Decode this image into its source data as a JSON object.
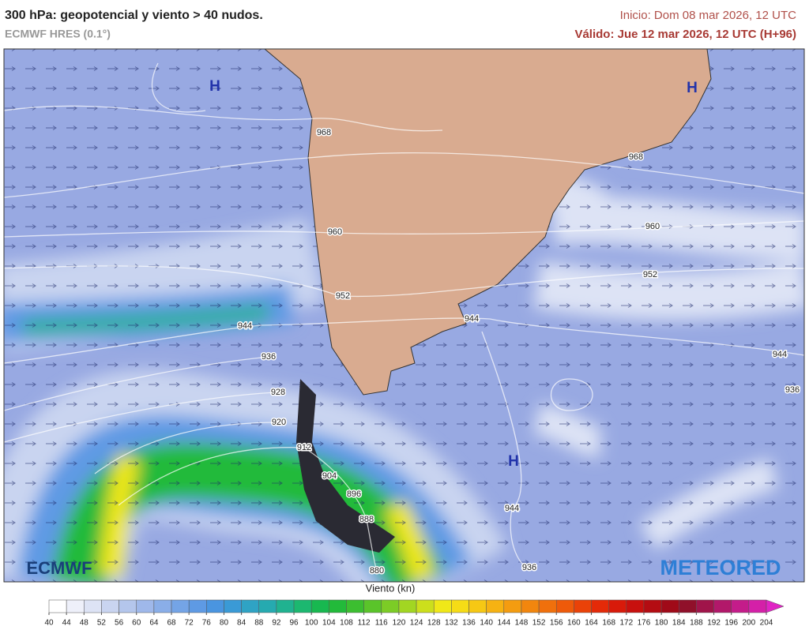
{
  "header": {
    "title": "300 hPa: geopotencial y viento > 40 nudos.",
    "subtitle": "ECMWF HRES (0.1°)",
    "init": "Inicio: Dom 08 mar 2026, 12 UTC",
    "valid": "Válido: Jue 12 mar 2026, 12 UTC (H+96)"
  },
  "map": {
    "highs": [
      "H",
      "H",
      "H"
    ],
    "contour_labels": [
      968,
      968,
      960,
      960,
      952,
      952,
      944,
      944,
      944,
      944,
      936,
      936,
      936,
      928,
      920,
      912,
      904,
      896,
      888,
      880
    ]
  },
  "logos": {
    "left": "ECMWF",
    "right": "METEORED"
  },
  "legend": {
    "title": "Viento (kn)",
    "ticks": [
      40,
      44,
      48,
      52,
      56,
      60,
      64,
      68,
      72,
      76,
      80,
      84,
      88,
      92,
      96,
      100,
      104,
      108,
      112,
      116,
      120,
      124,
      128,
      132,
      136,
      140,
      144,
      148,
      152,
      156,
      160,
      164,
      168,
      172,
      176,
      180,
      184,
      188,
      192,
      196,
      200,
      204
    ],
    "colors": [
      "#ffffff",
      "#eef0fa",
      "#dde3f5",
      "#c9d4f0",
      "#b4c6ec",
      "#9fb8ea",
      "#8aaee8",
      "#74a4e6",
      "#5e9ae4",
      "#4a95e0",
      "#3a9ad6",
      "#2fa3c4",
      "#26aab0",
      "#20b290",
      "#1cb870",
      "#18b850",
      "#22ba3a",
      "#3cbe30",
      "#5ac42a",
      "#7ccc26",
      "#a2d622",
      "#ccdf1c",
      "#f0e818",
      "#f6dc16",
      "#f6c814",
      "#f6b212",
      "#f49c10",
      "#f2860e",
      "#f0700c",
      "#ee5a0a",
      "#ea4208",
      "#e42a08",
      "#d81a0a",
      "#c8100e",
      "#b40c12",
      "#a00a18",
      "#90102a",
      "#a0144a",
      "#b2186a",
      "#c41c8a",
      "#d420a8",
      "#e024c4"
    ]
  }
}
